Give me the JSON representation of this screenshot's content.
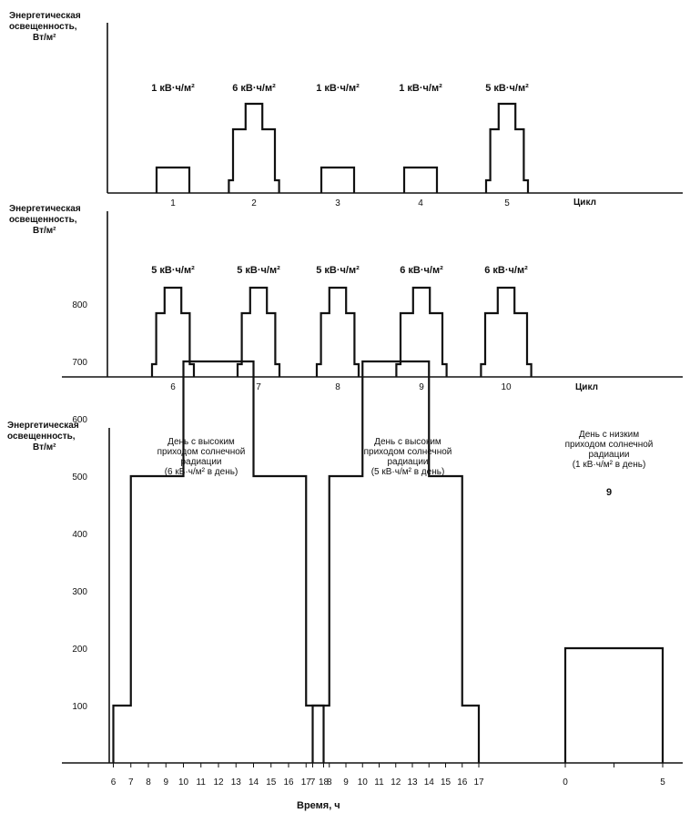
{
  "chart_data": [
    {
      "type": "line",
      "ylabel": [
        "Энергетическая",
        "освещенность,",
        "Вт/м²"
      ],
      "xlabel": "Цикл",
      "categories": [
        "1",
        "2",
        "3",
        "4",
        "5"
      ],
      "cycle_energy_labels": [
        "1 кВ·ч/м²",
        "6 кВ·ч/м²",
        "1 кВ·ч/м²",
        "1 кВ·ч/м²",
        "5 кВ·ч/м²"
      ],
      "cycle_profile": [
        "low",
        "high6",
        "low",
        "low",
        "high5"
      ]
    },
    {
      "type": "line",
      "ylabel": [
        "Энергетическая",
        "освещенность,",
        "Вт/м²"
      ],
      "xlabel": "Цикл",
      "categories": [
        "6",
        "7",
        "8",
        "9",
        "10"
      ],
      "cycle_energy_labels": [
        "5 кВ·ч/м²",
        "5 кВ·ч/м²",
        "5 кВ·ч/м²",
        "6 кВ·ч/м²",
        "6 кВ·ч/м²"
      ],
      "cycle_profile": [
        "high5",
        "high5",
        "high5",
        "high6",
        "high6"
      ]
    },
    {
      "type": "line",
      "ylabel": [
        "Энергетическая",
        "освещенность,",
        "Вт/м²"
      ],
      "xlabel": "Время, ч",
      "yticks": [
        100,
        200,
        300,
        400,
        500,
        600,
        700,
        800
      ],
      "ylim": [
        0,
        900
      ],
      "panels": [
        {
          "title": [
            "День с высоким",
            "приходом солнечной",
            "радиации",
            "(6 кВ·ч/м² в день)"
          ],
          "xticks": [
            "6",
            "7",
            "8",
            "9",
            "10",
            "11",
            "12",
            "13",
            "14",
            "15",
            "16",
            "17",
            "18"
          ],
          "x": [
            6,
            7,
            10,
            14,
            17,
            18
          ],
          "y": [
            100,
            500,
            700,
            500,
            100,
            0
          ]
        },
        {
          "title": [
            "День с высоким",
            "приходом солнечной",
            "радиации",
            "(5 кВ·ч/м² в день)"
          ],
          "xticks": [
            "7",
            "8",
            "9",
            "10",
            "11",
            "12",
            "13",
            "14",
            "15",
            "16",
            "17"
          ],
          "x": [
            7,
            8,
            10,
            14,
            16,
            17
          ],
          "y": [
            100,
            500,
            700,
            500,
            100,
            0
          ]
        },
        {
          "title": [
            "День с низким",
            "приходом солнечной",
            "радиации",
            "(1 кВ·ч/м² в день)"
          ],
          "note": "9",
          "xticks": [
            "0",
            "5"
          ],
          "x": [
            0,
            5
          ],
          "y": [
            200,
            0
          ]
        }
      ]
    }
  ]
}
